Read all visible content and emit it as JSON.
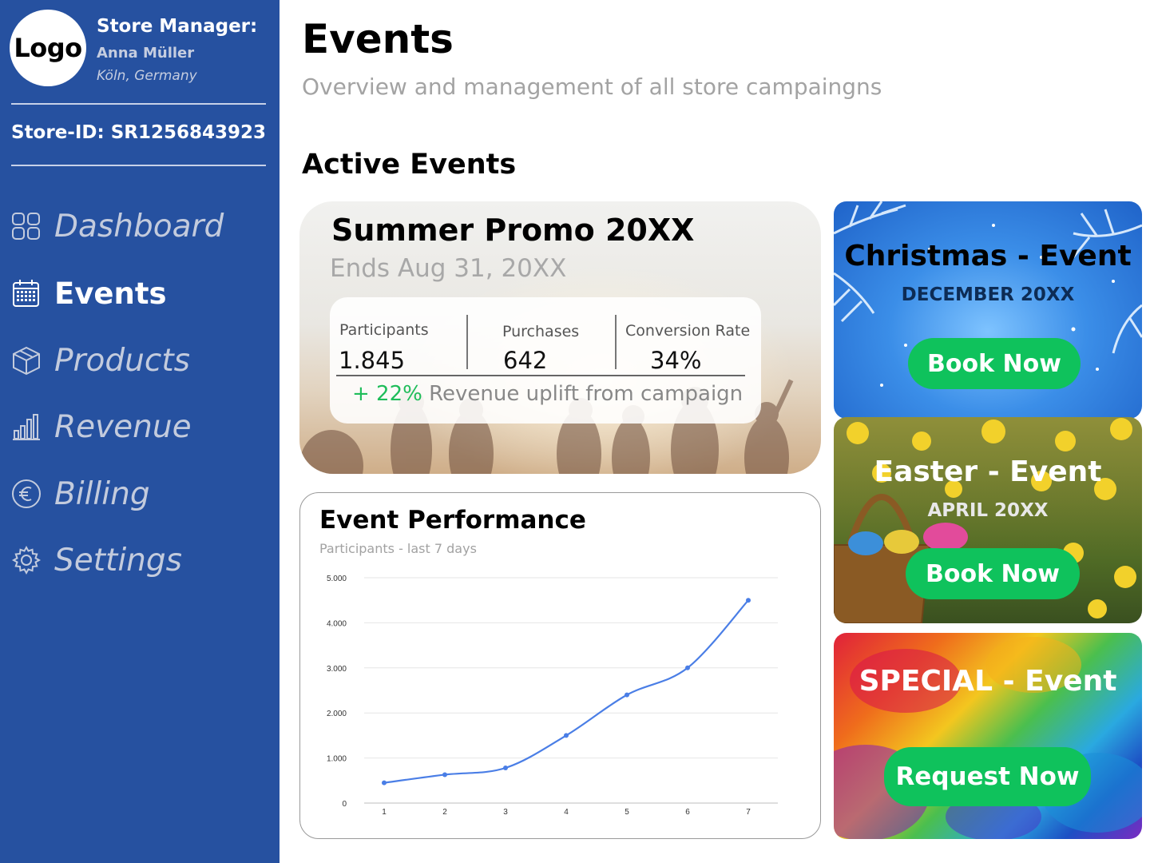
{
  "sidebar": {
    "logo": "Logo",
    "manager_title": "Store Manager:",
    "manager_name": "Anna Müller",
    "manager_location": "Köln, Germany",
    "store_id": "Store-ID: SR1256843923",
    "items": [
      {
        "label": "Dashboard",
        "icon": "dashboard-grid-icon",
        "active": false
      },
      {
        "label": "Events",
        "icon": "calendar-icon",
        "active": true
      },
      {
        "label": "Products",
        "icon": "box-icon",
        "active": false
      },
      {
        "label": "Revenue",
        "icon": "bar-chart-icon",
        "active": false
      },
      {
        "label": "Billing",
        "icon": "euro-icon",
        "active": false
      },
      {
        "label": "Settings",
        "icon": "gear-icon",
        "active": false
      }
    ]
  },
  "header": {
    "title": "Events",
    "subtitle": "Overview and management of all store campaingns"
  },
  "active_events": {
    "title": "Active Events",
    "promo": {
      "title": "Summer Promo 20XX",
      "ends": "Ends Aug 31, 20XX",
      "participants_label": "Participants",
      "participants_value": "1.845",
      "purchases_label": "Purchases",
      "purchases_value": "642",
      "conversion_label": "Conversion Rate",
      "conversion_value": "34%",
      "uplift_pct": "+ 22%",
      "uplift_text": " Revenue uplift from campaign"
    }
  },
  "performance": {
    "title": "Event Performance",
    "subtitle": "Participants - last 7 days"
  },
  "chart_data": {
    "type": "line",
    "x": [
      1,
      2,
      3,
      4,
      5,
      6,
      7
    ],
    "values": [
      450,
      630,
      780,
      1500,
      2400,
      3000,
      4500
    ],
    "ylim": [
      0,
      5000
    ],
    "yticks": [
      "0",
      "1.000",
      "2.000",
      "3.000",
      "4.000",
      "5.000"
    ],
    "xticks": [
      "1",
      "2",
      "3",
      "4",
      "5",
      "6",
      "7"
    ],
    "color": "#4a7ee6",
    "grid": true
  },
  "events": [
    {
      "title": "Christmas - Event",
      "date": "DECEMBER 20XX",
      "button": "Book Now"
    },
    {
      "title": "Easter - Event",
      "date": "APRIL 20XX",
      "button": "Book Now"
    },
    {
      "title": "SPECIAL - Event",
      "date": "",
      "button": "Request Now"
    }
  ],
  "colors": {
    "sidebar": "#2651a0",
    "button": "#0fc25c",
    "uplift": "#1fbd5a",
    "line": "#4a7ee6"
  }
}
